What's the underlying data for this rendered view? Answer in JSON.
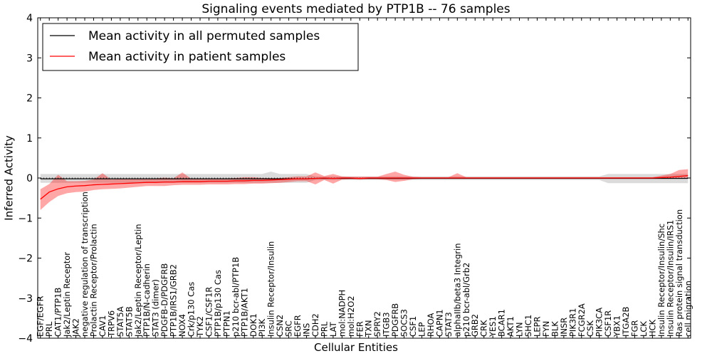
{
  "chart_data": {
    "type": "line",
    "title": "Signaling events mediated by PTP1B -- 76 samples",
    "xlabel": "Cellular Entities",
    "ylabel": "Inferred Activity",
    "ylim": [
      -4,
      4
    ],
    "yticks": [
      -4,
      -3,
      -2,
      -1,
      0,
      1,
      2,
      3,
      4
    ],
    "grid": false,
    "legend_position": "top-left",
    "colors": {
      "permuted": "#000000",
      "patient": "#ff0000",
      "patient_band": "#ff0000",
      "permuted_band": "#b0b0b0"
    },
    "categories": [
      "EGF/EGFR",
      "PRL",
      "CAT1/PTP1B",
      "Jak2/Leptin Receptor",
      "JAK2",
      "negative regulation of transcription",
      "Prolactin Receptor/Prolactin",
      "CAV1",
      "TRPV6",
      "STAT5A",
      "STAT5B",
      "Jak2/Leptin Receptor/Leptin",
      "PTP1B/N-cadherin",
      "STAT3 (dimer)",
      "PDGFB-D/PDGFRB",
      "PTP1B/IRS1/GRB2",
      "NOX4",
      "Crk/p130 Cas",
      "TYK2",
      "CSF1/CSF1R",
      "PTP1B/p130 Cas",
      "PTPN1",
      "p210 bcr-abl/PTP1B",
      "PTP1B/AKT1",
      "DOK1",
      "PI3K",
      "Insulin Receptor/Insulin",
      "CSN2",
      "SRC",
      "EGFR",
      "INS",
      "CDH2",
      "PRL",
      "LAT",
      "mol:NADPH",
      "mol:H2O2",
      "FER",
      "TXN",
      "SPRY2",
      "ITGB3",
      "PDGFRB",
      "SOCS3",
      "CSF1",
      "LEP",
      "RHOA",
      "CAPN1",
      "STAT3",
      "alphaIIb/beta3 Integrin",
      "p210 bcr-abl/Grb2",
      "GRB2",
      "CRK",
      "YES1",
      "BCAR1",
      "AKT1",
      "LYN",
      "SHC1",
      "LEPR",
      "FYN",
      "BLK",
      "INSR",
      "PIK3R1",
      "FCGR2A",
      "CSK",
      "PIK3CA",
      "CSF1R",
      "YBX1",
      "ITGA2B",
      "FGR",
      "LCK",
      "HCK",
      "Insulin Receptor/Insulin/Shc",
      "Insulin Receptor/Insulin/IRS1",
      "Ras protein signal transduction",
      "cell migration"
    ],
    "series": [
      {
        "name": "Mean activity in all permuted samples",
        "color": "#000000",
        "values": [
          -0.02,
          -0.02,
          -0.02,
          -0.02,
          -0.02,
          -0.02,
          -0.02,
          -0.02,
          -0.02,
          -0.02,
          -0.02,
          -0.02,
          -0.02,
          -0.02,
          -0.02,
          -0.02,
          -0.02,
          -0.02,
          -0.02,
          -0.02,
          -0.02,
          -0.02,
          -0.02,
          -0.02,
          -0.02,
          -0.02,
          -0.02,
          -0.02,
          -0.02,
          -0.02,
          -0.02,
          -0.01,
          -0.01,
          -0.01,
          -0.01,
          -0.01,
          -0.01,
          -0.01,
          -0.01,
          -0.01,
          -0.01,
          -0.01,
          -0.01,
          -0.01,
          -0.01,
          -0.01,
          -0.01,
          -0.01,
          -0.01,
          -0.01,
          -0.01,
          -0.01,
          -0.01,
          -0.01,
          -0.01,
          -0.01,
          -0.01,
          -0.01,
          -0.01,
          -0.01,
          -0.01,
          -0.01,
          -0.01,
          -0.01,
          -0.01,
          -0.01,
          -0.01,
          -0.01,
          -0.01,
          -0.01,
          -0.01,
          -0.01,
          -0.01,
          -0.01
        ],
        "lower": [
          -0.12,
          -0.12,
          -0.12,
          -0.12,
          -0.12,
          -0.12,
          -0.12,
          -0.12,
          -0.12,
          -0.12,
          -0.12,
          -0.12,
          -0.12,
          -0.12,
          -0.12,
          -0.12,
          -0.12,
          -0.12,
          -0.12,
          -0.12,
          -0.12,
          -0.12,
          -0.12,
          -0.12,
          -0.12,
          -0.12,
          -0.12,
          -0.12,
          -0.12,
          -0.12,
          -0.12,
          -0.05,
          -0.05,
          -0.05,
          -0.05,
          -0.05,
          -0.05,
          -0.05,
          -0.05,
          -0.05,
          -0.05,
          -0.05,
          -0.05,
          -0.05,
          -0.05,
          -0.05,
          -0.05,
          -0.05,
          -0.05,
          -0.05,
          -0.05,
          -0.05,
          -0.05,
          -0.05,
          -0.05,
          -0.05,
          -0.05,
          -0.05,
          -0.05,
          -0.05,
          -0.05,
          -0.05,
          -0.05,
          -0.05,
          -0.13,
          -0.13,
          -0.13,
          -0.13,
          -0.13,
          -0.13,
          -0.13,
          -0.13,
          -0.13,
          -0.13
        ],
        "upper": [
          0.1,
          0.1,
          0.1,
          0.1,
          0.1,
          0.1,
          0.1,
          0.1,
          0.1,
          0.1,
          0.1,
          0.1,
          0.1,
          0.1,
          0.1,
          0.1,
          0.1,
          0.1,
          0.1,
          0.1,
          0.1,
          0.1,
          0.1,
          0.1,
          0.1,
          0.1,
          0.16,
          0.1,
          0.1,
          0.1,
          0.1,
          0.04,
          0.04,
          0.04,
          0.04,
          0.04,
          0.04,
          0.04,
          0.04,
          0.04,
          0.04,
          0.04,
          0.04,
          0.04,
          0.04,
          0.04,
          0.04,
          0.04,
          0.04,
          0.04,
          0.04,
          0.04,
          0.04,
          0.04,
          0.04,
          0.04,
          0.04,
          0.04,
          0.04,
          0.04,
          0.04,
          0.04,
          0.04,
          0.04,
          0.1,
          0.1,
          0.1,
          0.1,
          0.1,
          0.1,
          0.1,
          0.1,
          0.1,
          0.1
        ]
      },
      {
        "name": "Mean activity in patient samples",
        "color": "#ff0000",
        "values": [
          -0.53,
          -0.35,
          -0.27,
          -0.22,
          -0.2,
          -0.19,
          -0.17,
          -0.16,
          -0.15,
          -0.14,
          -0.13,
          -0.12,
          -0.11,
          -0.11,
          -0.1,
          -0.1,
          -0.09,
          -0.09,
          -0.09,
          -0.08,
          -0.08,
          -0.08,
          -0.07,
          -0.07,
          -0.06,
          -0.06,
          -0.05,
          -0.04,
          -0.03,
          -0.02,
          -0.02,
          -0.01,
          0.0,
          -0.01,
          0.0,
          0.0,
          -0.01,
          0.0,
          0.0,
          0.0,
          0.0,
          0.0,
          0.0,
          0.0,
          0.0,
          0.0,
          0.0,
          0.0,
          0.0,
          0.0,
          0.0,
          0.0,
          0.0,
          0.0,
          0.0,
          0.0,
          0.0,
          0.0,
          0.0,
          0.0,
          0.0,
          0.0,
          0.0,
          0.0,
          0.0,
          0.0,
          0.0,
          0.0,
          0.0,
          0.0,
          0.01,
          0.02,
          0.04,
          0.06
        ],
        "lower": [
          -0.8,
          -0.6,
          -0.45,
          -0.38,
          -0.35,
          -0.34,
          -0.3,
          -0.28,
          -0.27,
          -0.26,
          -0.24,
          -0.22,
          -0.2,
          -0.2,
          -0.2,
          -0.18,
          -0.17,
          -0.17,
          -0.17,
          -0.16,
          -0.16,
          -0.16,
          -0.15,
          -0.15,
          -0.14,
          -0.14,
          -0.13,
          -0.12,
          -0.1,
          -0.08,
          -0.08,
          -0.16,
          -0.05,
          -0.14,
          -0.04,
          -0.03,
          -0.04,
          -0.03,
          -0.03,
          -0.05,
          -0.1,
          -0.07,
          -0.03,
          -0.02,
          -0.02,
          -0.02,
          -0.02,
          -0.02,
          -0.02,
          -0.02,
          -0.02,
          -0.02,
          -0.02,
          -0.02,
          -0.02,
          -0.02,
          -0.02,
          -0.02,
          -0.02,
          -0.02,
          -0.02,
          -0.02,
          -0.02,
          -0.02,
          -0.02,
          -0.02,
          -0.02,
          -0.02,
          -0.02,
          -0.02,
          -0.02,
          -0.02,
          -0.02,
          -0.02
        ],
        "upper": [
          -0.28,
          -0.15,
          0.08,
          -0.08,
          -0.08,
          -0.07,
          -0.04,
          0.12,
          -0.04,
          -0.02,
          -0.02,
          -0.02,
          -0.01,
          -0.01,
          0.01,
          -0.01,
          0.14,
          -0.02,
          -0.02,
          -0.01,
          -0.01,
          -0.01,
          0.0,
          0.02,
          0.02,
          0.0,
          0.0,
          0.0,
          0.02,
          0.04,
          0.04,
          0.14,
          0.05,
          0.1,
          0.04,
          0.03,
          0.03,
          0.03,
          0.03,
          0.1,
          0.16,
          0.08,
          0.03,
          0.02,
          0.02,
          0.02,
          0.02,
          0.12,
          0.02,
          0.02,
          0.02,
          0.02,
          0.02,
          0.02,
          0.02,
          0.02,
          0.02,
          0.02,
          0.02,
          0.02,
          0.02,
          0.02,
          0.02,
          0.02,
          0.02,
          0.02,
          0.02,
          0.02,
          0.02,
          0.02,
          0.06,
          0.1,
          0.2,
          0.22
        ]
      }
    ]
  }
}
